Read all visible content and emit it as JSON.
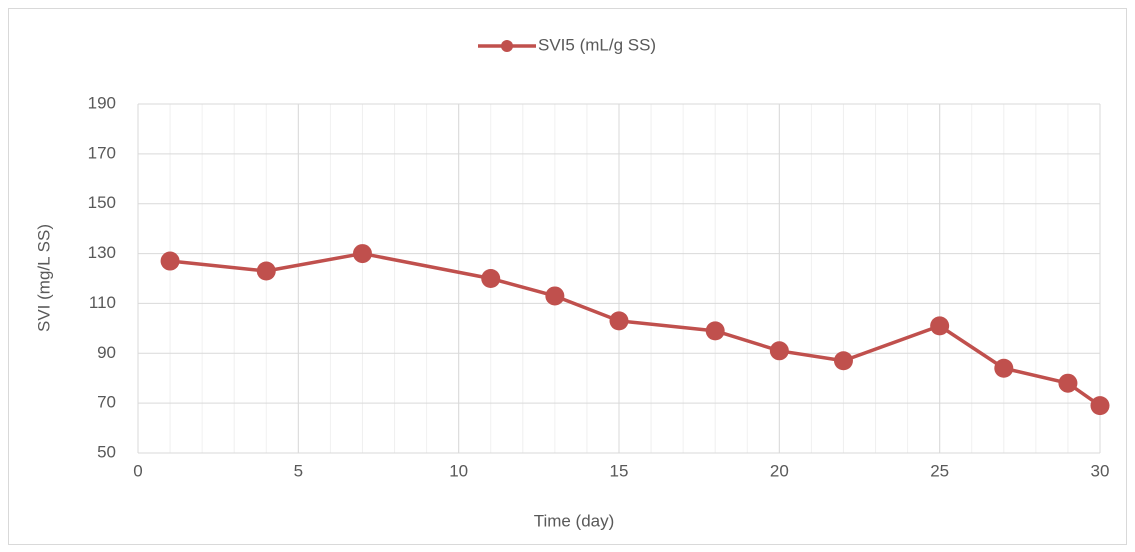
{
  "chart_data": {
    "type": "line",
    "xlabel": "Time (day)",
    "ylabel": "SVI (mg/L SS)",
    "x": [
      1,
      4,
      7,
      11,
      13,
      15,
      18,
      20,
      22,
      25,
      27,
      29,
      30
    ],
    "series": [
      {
        "name": "SVI5 (mL/g SS)",
        "color": "#c0504d",
        "values": [
          127,
          123,
          130,
          120,
          113,
          103,
          99,
          91,
          87,
          101,
          84,
          78,
          69
        ]
      }
    ],
    "xlim": [
      0,
      30
    ],
    "xticks": [
      0,
      5,
      10,
      15,
      20,
      25,
      30
    ],
    "ylim": [
      50,
      190
    ],
    "yticks": [
      50,
      70,
      90,
      110,
      130,
      150,
      170,
      190
    ],
    "grid": true,
    "x_minor_grid_step": 1,
    "legend": "top"
  }
}
